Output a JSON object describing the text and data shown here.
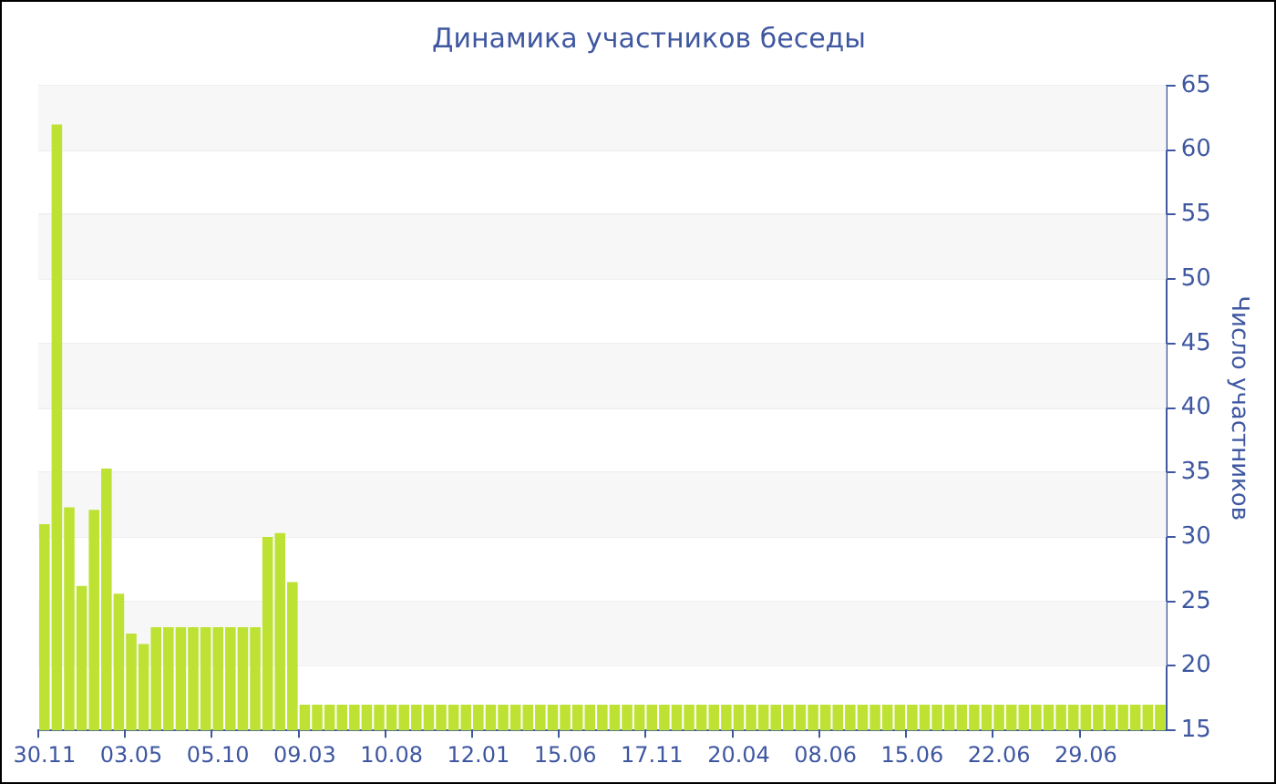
{
  "chart_data": {
    "type": "bar",
    "title": "Динамика участников беседы",
    "ylabel": "Число участников",
    "categories": [
      "30.11",
      null,
      null,
      null,
      null,
      null,
      null,
      "03.05",
      null,
      null,
      null,
      null,
      null,
      null,
      "05.10",
      null,
      null,
      null,
      null,
      null,
      null,
      "09.03",
      null,
      null,
      null,
      null,
      null,
      null,
      "10.08",
      null,
      null,
      null,
      null,
      null,
      null,
      "12.01",
      null,
      null,
      null,
      null,
      null,
      null,
      "15.06",
      null,
      null,
      null,
      null,
      null,
      null,
      "17.11",
      null,
      null,
      null,
      null,
      null,
      null,
      "20.04",
      null,
      null,
      null,
      null,
      null,
      null,
      "08.06",
      null,
      null,
      null,
      null,
      null,
      null,
      "15.06",
      null,
      null,
      null,
      null,
      null,
      null,
      "22.06",
      null,
      null,
      null,
      null,
      null,
      null,
      "29.06",
      null,
      null,
      null,
      null,
      null,
      null
    ],
    "values": [
      31,
      62,
      32.3,
      26.2,
      32.1,
      35.3,
      25.6,
      22.5,
      21.7,
      23,
      23,
      23,
      23,
      23,
      23,
      23,
      23,
      23,
      30,
      30.3,
      26.5,
      17,
      17,
      17,
      17,
      17,
      17,
      17,
      17,
      17,
      17,
      17,
      17,
      17,
      17,
      17,
      17,
      17,
      17,
      17,
      17,
      17,
      17,
      17,
      17,
      17,
      17,
      17,
      17,
      17,
      17,
      17,
      17,
      17,
      17,
      17,
      17,
      17,
      17,
      17,
      17,
      17,
      17,
      17,
      17,
      17,
      17,
      17,
      17,
      17,
      17,
      17,
      17,
      17,
      17,
      17,
      17,
      17,
      17,
      17,
      17,
      17,
      17,
      17,
      17,
      17,
      17,
      17,
      17,
      17,
      17
    ],
    "color": "#bde234",
    "ylim": [
      15,
      65
    ],
    "yticks": [
      15,
      20,
      25,
      30,
      35,
      40,
      45,
      50,
      55,
      60,
      65
    ],
    "grid": "y"
  }
}
